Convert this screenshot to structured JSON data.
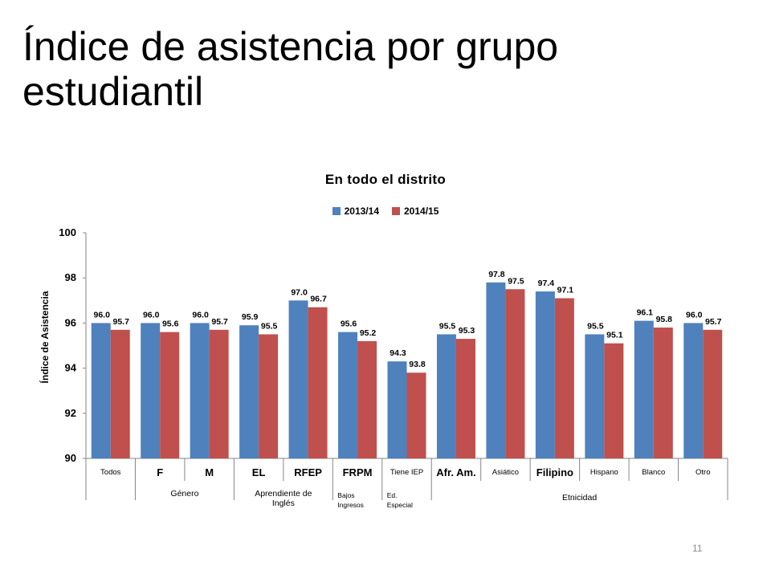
{
  "title": "Índice de asistencia por grupo estudiantil",
  "page_number": "11",
  "chart_data": {
    "type": "bar",
    "title": "En todo el distrito",
    "ylabel": "Índice de Asistencia",
    "xlabel": "",
    "ylim": [
      90,
      100
    ],
    "yticks": [
      "90",
      "92",
      "94",
      "96",
      "98",
      "100"
    ],
    "grid": false,
    "legend_position": "top-center",
    "categories": [
      "Todos",
      "F",
      "M",
      "EL",
      "RFEP",
      "FRPM",
      "Tiene IEP",
      "Afr. Am.",
      "Asiático",
      "Filipino",
      "Hispano",
      "Blanco",
      "Otro"
    ],
    "bold_categories": [
      false,
      true,
      true,
      true,
      true,
      true,
      false,
      true,
      false,
      true,
      false,
      false,
      false
    ],
    "series": [
      {
        "name": "2013/14",
        "color": "#4f81bd",
        "values": [
          96.0,
          96.0,
          96.0,
          95.9,
          97.0,
          95.6,
          94.3,
          95.5,
          97.8,
          97.4,
          95.5,
          96.1,
          96.0
        ],
        "labels": [
          "96.0",
          "96.0",
          "96.0",
          "95.9",
          "97.0",
          "95.6",
          "94.3",
          "95.5",
          "97.8",
          "97.4",
          "95.5",
          "96.1",
          "96.0"
        ]
      },
      {
        "name": "2014/15",
        "color": "#c0504d",
        "values": [
          95.7,
          95.6,
          95.7,
          95.5,
          96.7,
          95.2,
          93.8,
          95.3,
          97.5,
          97.1,
          95.1,
          95.8,
          95.7
        ],
        "labels": [
          "95.7",
          "95.6",
          "95.7",
          "95.5",
          "96.7",
          "95.2",
          "93.8",
          "95.3",
          "97.5",
          "97.1",
          "95.1",
          "95.8",
          "95.7"
        ]
      }
    ],
    "groups": [
      {
        "label": "Género",
        "from": 1,
        "to": 2
      },
      {
        "label": "Aprendiente de Inglés",
        "from": 3,
        "to": 4
      },
      {
        "label": "Bajos Ingresos",
        "from": 5,
        "to": 5
      },
      {
        "label": "Ed. Especial",
        "from": 6,
        "to": 6
      },
      {
        "label": "Etnicidad",
        "from": 7,
        "to": 12
      }
    ]
  }
}
